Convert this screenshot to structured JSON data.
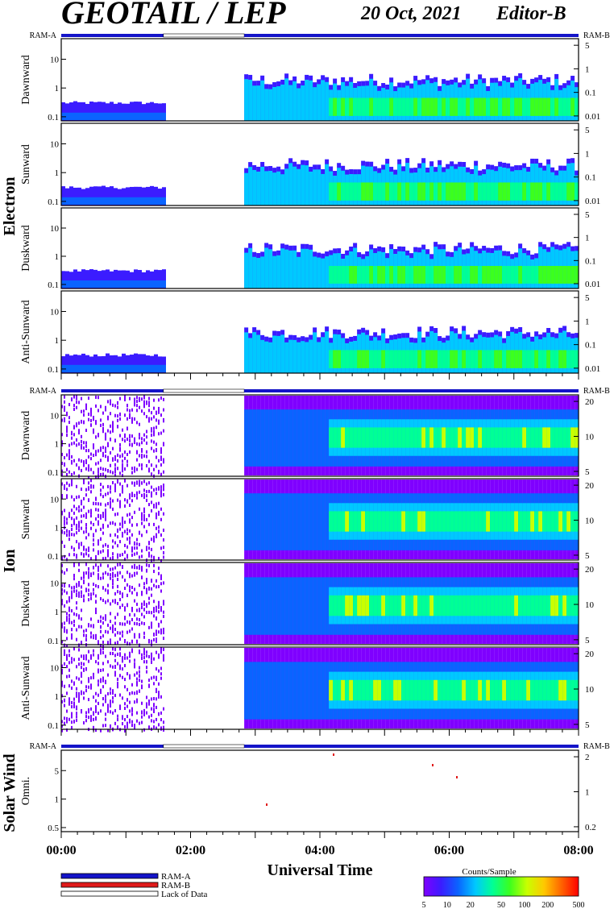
{
  "header": {
    "title": "GEOTAIL / LEP",
    "date": "20 Oct, 2021",
    "editor": "Editor-B"
  },
  "chart_data": {
    "type": "heatmap",
    "xlabel": "Universal Time",
    "x_ticks": [
      "00:00",
      "02:00",
      "04:00",
      "06:00",
      "08:00"
    ],
    "x_range_hours": [
      0,
      8
    ],
    "data_gap_hours": [
      1.58,
      2.83
    ],
    "ram_labels": {
      "a": "RAM-A",
      "b": "RAM-B"
    },
    "groups": [
      {
        "name": "Electron",
        "panels": [
          {
            "label": "Dawnward",
            "left_ticks": [
              "10",
              "1",
              "0.1"
            ],
            "right_ticks": [
              "5",
              "1",
              "0.1",
              "0.01"
            ]
          },
          {
            "label": "Sunward",
            "left_ticks": [
              "10",
              "1",
              "0.1"
            ],
            "right_ticks": [
              "5",
              "1",
              "0.1",
              "0.01"
            ]
          },
          {
            "label": "Duskward",
            "left_ticks": [
              "10",
              "1",
              "0.1"
            ],
            "right_ticks": [
              "5",
              "1",
              "0.1",
              "0.01"
            ]
          },
          {
            "label": "Anti-Sunward",
            "left_ticks": [
              "10",
              "1",
              "0.1"
            ],
            "right_ticks": [
              "5",
              "1",
              "0.1",
              "0.01"
            ]
          }
        ]
      },
      {
        "name": "Ion",
        "panels": [
          {
            "label": "Dawnward",
            "left_ticks": [
              "10",
              "1",
              "0.1"
            ],
            "right_ticks": [
              "20",
              "10",
              "5"
            ]
          },
          {
            "label": "Sunward",
            "left_ticks": [
              "10",
              "1",
              "0.1"
            ],
            "right_ticks": [
              "20",
              "10",
              "5"
            ]
          },
          {
            "label": "Duskward",
            "left_ticks": [
              "10",
              "1",
              "0.1"
            ],
            "right_ticks": [
              "20",
              "10",
              "5"
            ]
          },
          {
            "label": "Anti-Sunward",
            "left_ticks": [
              "10",
              "1",
              "0.1"
            ],
            "right_ticks": [
              "20",
              "10",
              "5"
            ]
          }
        ]
      },
      {
        "name": "Solar Wind",
        "panels": [
          {
            "label": "Omni.",
            "left_ticks": [
              "5",
              "1",
              "0.5"
            ],
            "right_ticks": [
              "2",
              "1",
              "0.2"
            ]
          }
        ]
      }
    ],
    "legend": {
      "items": [
        {
          "label": "RAM-A",
          "color": "#1414c8"
        },
        {
          "label": "RAM-B",
          "color": "#e01a1a"
        },
        {
          "label": "Lack of Data",
          "color": "#ffffff"
        }
      ]
    },
    "colorbar": {
      "title": "Counts/Sample",
      "ticks": [
        "5",
        "10",
        "20",
        "50",
        "100",
        "200",
        "500"
      ],
      "colors": [
        "#7f00ff",
        "#3b1cff",
        "#0a64ff",
        "#00c8ff",
        "#00ff96",
        "#3cff1e",
        "#c8ff00",
        "#ffc800",
        "#ff6400",
        "#ff0000"
      ]
    }
  }
}
